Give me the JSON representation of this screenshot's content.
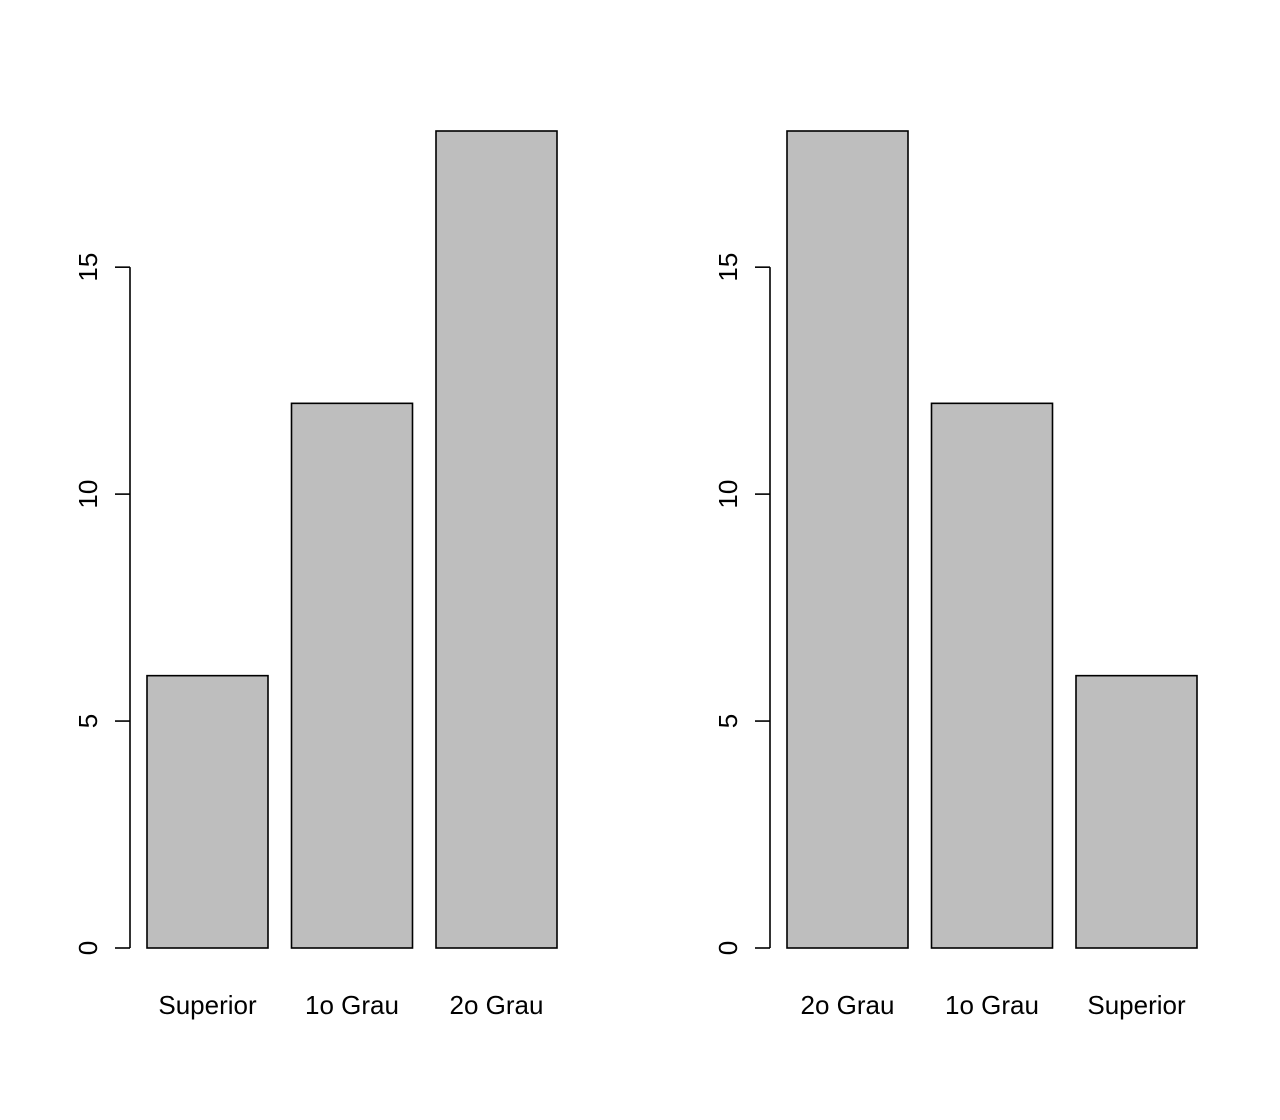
{
  "chart_data": [
    {
      "type": "bar",
      "categories": [
        "Superior",
        "1o Grau",
        "2o Grau"
      ],
      "values": [
        6,
        12,
        18
      ],
      "title": "",
      "xlabel": "",
      "ylabel": "",
      "ylim": [
        0,
        18
      ],
      "yticks": [
        0,
        5,
        10,
        15
      ],
      "grid": false,
      "bar_color": "#bebebe",
      "border_color": "#000000"
    },
    {
      "type": "bar",
      "categories": [
        "2o Grau",
        "1o Grau",
        "Superior"
      ],
      "values": [
        18,
        12,
        6
      ],
      "title": "",
      "xlabel": "",
      "ylabel": "",
      "ylim": [
        0,
        18
      ],
      "yticks": [
        0,
        5,
        10,
        15
      ],
      "grid": false,
      "bar_color": "#bebebe",
      "border_color": "#000000"
    }
  ]
}
